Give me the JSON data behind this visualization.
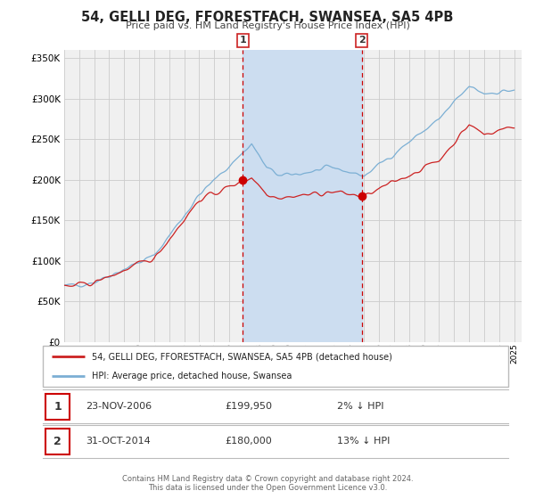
{
  "title": "54, GELLI DEG, FFORESTFACH, SWANSEA, SA5 4PB",
  "subtitle": "Price paid vs. HM Land Registry's House Price Index (HPI)",
  "ylim": [
    0,
    360000
  ],
  "yticks": [
    0,
    50000,
    100000,
    150000,
    200000,
    250000,
    300000,
    350000
  ],
  "ytick_labels": [
    "£0",
    "£50K",
    "£100K",
    "£150K",
    "£200K",
    "£250K",
    "£300K",
    "£350K"
  ],
  "hpi_color": "#7bafd4",
  "price_color": "#cc2222",
  "marker_color": "#cc0000",
  "plot_bg_color": "#f0f0f0",
  "shade_color": "#ccddf0",
  "grid_color": "#cccccc",
  "sale1_year": 2006.9,
  "sale1_price": 199950,
  "sale2_year": 2014.83,
  "sale2_price": 180000,
  "vline_color": "#cc0000",
  "legend1_label": "54, GELLI DEG, FFORESTFACH, SWANSEA, SA5 4PB (detached house)",
  "legend2_label": "HPI: Average price, detached house, Swansea",
  "table_data": [
    [
      "1",
      "23-NOV-2006",
      "£199,950",
      "2% ↓ HPI"
    ],
    [
      "2",
      "31-OCT-2014",
      "£180,000",
      "13% ↓ HPI"
    ]
  ],
  "footnote1": "Contains HM Land Registry data © Crown copyright and database right 2024.",
  "footnote2": "This data is licensed under the Open Government Licence v3.0."
}
